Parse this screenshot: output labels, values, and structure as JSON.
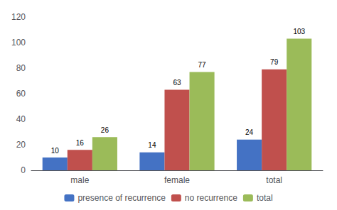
{
  "chart_data": {
    "type": "bar",
    "categories": [
      "male",
      "female",
      "total"
    ],
    "series": [
      {
        "name": "presence of recurrence",
        "color": "#4472C4",
        "values": [
          10,
          14,
          24
        ]
      },
      {
        "name": "no recurrence",
        "color": "#C0504D",
        "values": [
          16,
          63,
          79
        ]
      },
      {
        "name": "total",
        "color": "#9BBB59",
        "values": [
          26,
          77,
          103
        ]
      }
    ],
    "ylim": [
      0,
      120
    ],
    "yticks": [
      0,
      20,
      40,
      60,
      80,
      100,
      120
    ],
    "grid": false,
    "legend": "bottom",
    "data_labels": true
  }
}
